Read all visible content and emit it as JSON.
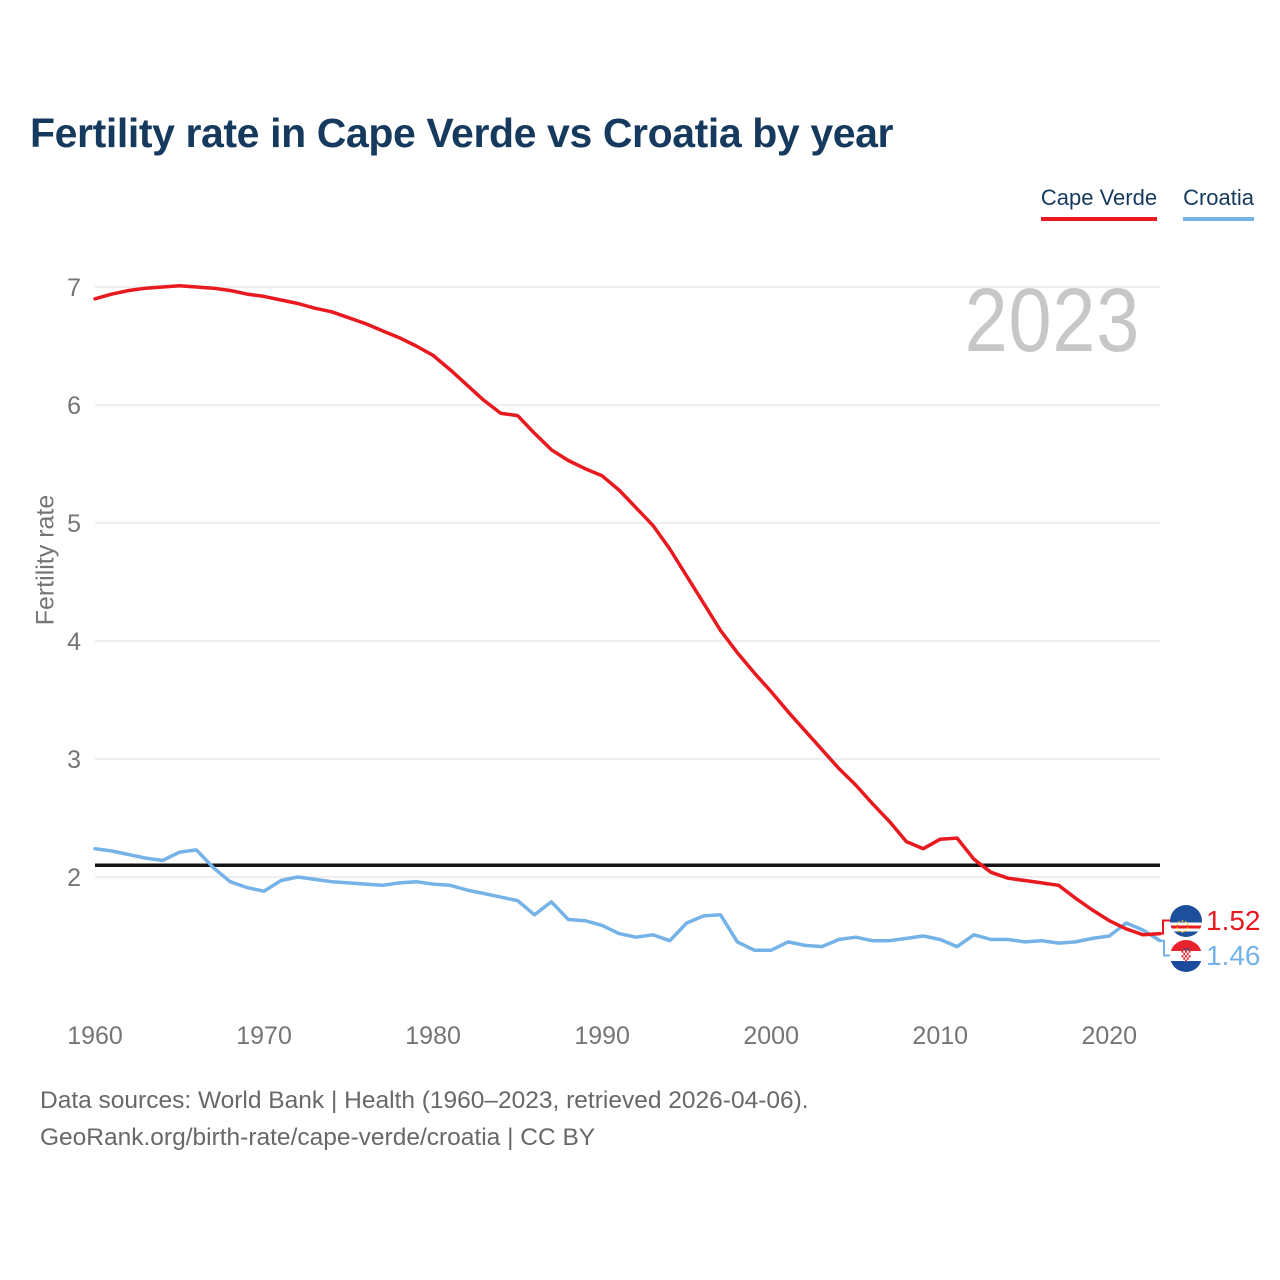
{
  "title": "Fertility rate in Cape Verde vs Croatia by year",
  "watermark_year": "2023",
  "y_axis_title": "Fertility rate",
  "legend": {
    "items": [
      {
        "label": "Cape Verde",
        "color": "#e8191f"
      },
      {
        "label": "Croatia",
        "color": "#74b2e8"
      }
    ]
  },
  "end_labels": [
    {
      "country": "Cape Verde",
      "value": "1.52",
      "color": "#e8191f",
      "flag": "cape-verde-flag"
    },
    {
      "country": "Croatia",
      "value": "1.46",
      "color": "#74b2e8",
      "flag": "croatia-flag"
    }
  ],
  "footer": {
    "line1": "Data sources: World Bank | Health (1960–2023, retrieved 2026-04-06).",
    "line2": "GeoRank.org/birth-rate/cape-verde/croatia | CC BY"
  },
  "chart_data": {
    "type": "line",
    "title": "Fertility rate in Cape Verde vs Croatia by year",
    "ylabel": "Fertility rate",
    "xlabel": "",
    "grid": "horizontal-only",
    "legend_position": "top-right",
    "xlim": [
      1960,
      2023
    ],
    "ylim": [
      1.3,
      7.1
    ],
    "x_ticks": [
      1960,
      1970,
      1980,
      1990,
      2000,
      2010,
      2020
    ],
    "y_ticks": [
      2,
      3,
      4,
      5,
      6,
      7
    ],
    "reference_line": {
      "value": 2.1,
      "color": "#141414"
    },
    "x": [
      1960,
      1961,
      1962,
      1963,
      1964,
      1965,
      1966,
      1967,
      1968,
      1969,
      1970,
      1971,
      1972,
      1973,
      1974,
      1975,
      1976,
      1977,
      1978,
      1979,
      1980,
      1981,
      1982,
      1983,
      1984,
      1985,
      1986,
      1987,
      1988,
      1989,
      1990,
      1991,
      1992,
      1993,
      1994,
      1995,
      1996,
      1997,
      1998,
      1999,
      2000,
      2001,
      2002,
      2003,
      2004,
      2005,
      2006,
      2007,
      2008,
      2009,
      2010,
      2011,
      2012,
      2013,
      2014,
      2015,
      2016,
      2017,
      2018,
      2019,
      2020,
      2021,
      2022,
      2023
    ],
    "series": [
      {
        "name": "Cape Verde",
        "color": "#e8191f",
        "final_value": 1.52,
        "values": [
          6.9,
          6.94,
          6.97,
          6.99,
          7.0,
          7.01,
          7.0,
          6.99,
          6.97,
          6.94,
          6.92,
          6.89,
          6.86,
          6.82,
          6.79,
          6.74,
          6.69,
          6.63,
          6.57,
          6.5,
          6.42,
          6.3,
          6.17,
          6.04,
          5.93,
          5.91,
          5.76,
          5.62,
          5.53,
          5.46,
          5.4,
          5.28,
          5.13,
          4.98,
          4.78,
          4.55,
          4.32,
          4.09,
          3.9,
          3.73,
          3.57,
          3.4,
          3.24,
          3.08,
          2.92,
          2.78,
          2.62,
          2.47,
          2.3,
          2.24,
          2.32,
          2.33,
          2.15,
          2.04,
          1.99,
          1.97,
          1.95,
          1.93,
          1.82,
          1.72,
          1.63,
          1.56,
          1.51,
          1.52
        ]
      },
      {
        "name": "Croatia",
        "color": "#74b2e8",
        "final_value": 1.46,
        "values": [
          2.24,
          2.22,
          2.19,
          2.16,
          2.14,
          2.21,
          2.23,
          2.08,
          1.96,
          1.91,
          1.88,
          1.97,
          2.0,
          1.98,
          1.96,
          1.95,
          1.94,
          1.93,
          1.95,
          1.96,
          1.94,
          1.93,
          1.89,
          1.86,
          1.83,
          1.8,
          1.68,
          1.79,
          1.64,
          1.63,
          1.59,
          1.52,
          1.49,
          1.51,
          1.46,
          1.61,
          1.67,
          1.68,
          1.45,
          1.38,
          1.38,
          1.45,
          1.42,
          1.41,
          1.47,
          1.49,
          1.46,
          1.46,
          1.48,
          1.5,
          1.47,
          1.41,
          1.51,
          1.47,
          1.47,
          1.45,
          1.46,
          1.44,
          1.45,
          1.48,
          1.5,
          1.61,
          1.55,
          1.46
        ]
      }
    ]
  }
}
